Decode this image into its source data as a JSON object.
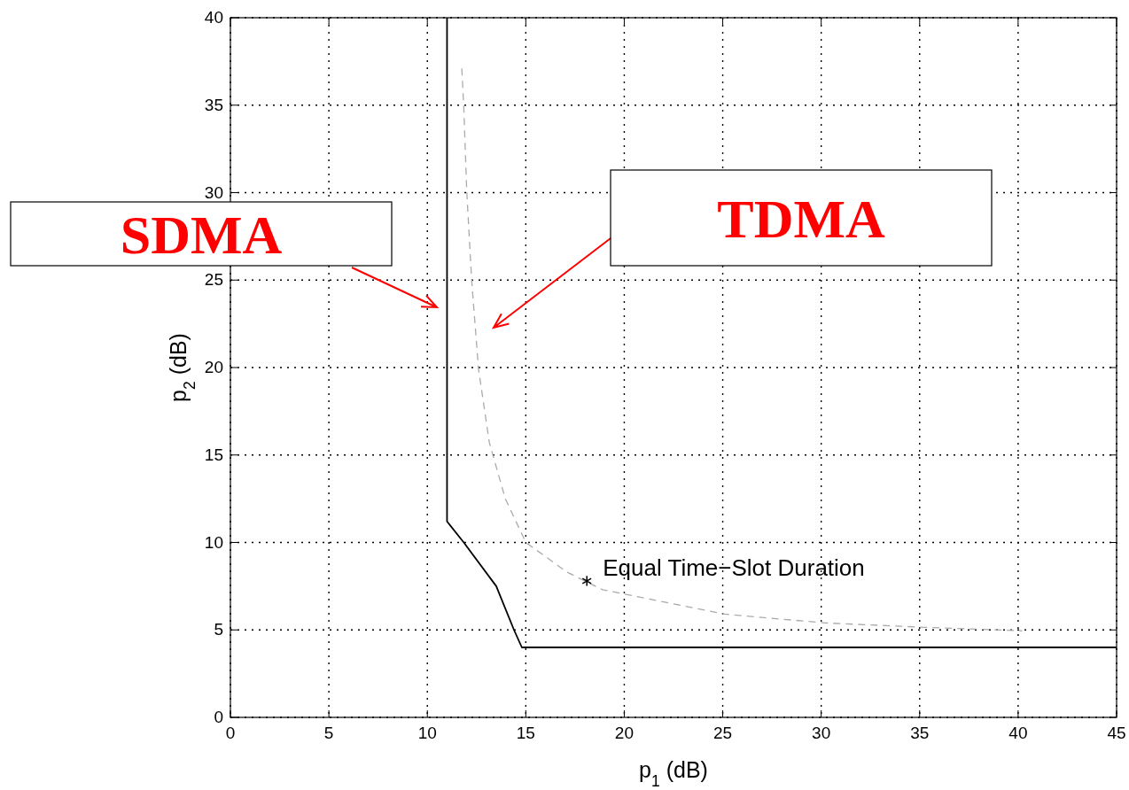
{
  "chart_data": {
    "type": "line",
    "xlabel": "p$_{1}$ (dB)",
    "ylabel": "p$_{2}$ (dB)",
    "xlim": [
      0,
      45
    ],
    "ylim": [
      0,
      40
    ],
    "xticks": [
      0,
      5,
      10,
      15,
      20,
      25,
      30,
      35,
      40,
      45
    ],
    "yticks": [
      0,
      5,
      10,
      15,
      20,
      25,
      30,
      35,
      40
    ],
    "grid": true,
    "series": [
      {
        "color": "#000000",
        "line_style": "solid",
        "x": [
          11,
          11,
          11.85,
          13.5,
          14.4,
          14.8,
          45
        ],
        "values": [
          40,
          11.2,
          10,
          7.5,
          5,
          4,
          4
        ]
      },
      {
        "color": "#aaaaaa",
        "line_style": "dashed",
        "x": [
          11.75,
          11.85,
          12.0,
          12.25,
          12.6,
          13.15,
          13.96,
          15,
          17.1,
          18.9,
          25.1,
          30.2,
          35.2,
          40.2
        ],
        "values": [
          37.1,
          34.9,
          30.1,
          25,
          19.9,
          15.7,
          12.5,
          10,
          8.3,
          7.3,
          5.9,
          5.4,
          5.15,
          4.95
        ]
      },
      {
        "type": "scatter",
        "color": "#000000",
        "marker": "cross",
        "x": [
          18.1
        ],
        "values": [
          7.8
        ]
      }
    ],
    "annotations": [
      {
        "text": "Equal Time−Slot Duration",
        "x": 18.1,
        "y": 7.8
      },
      "SDMA",
      "TDMA"
    ]
  }
}
